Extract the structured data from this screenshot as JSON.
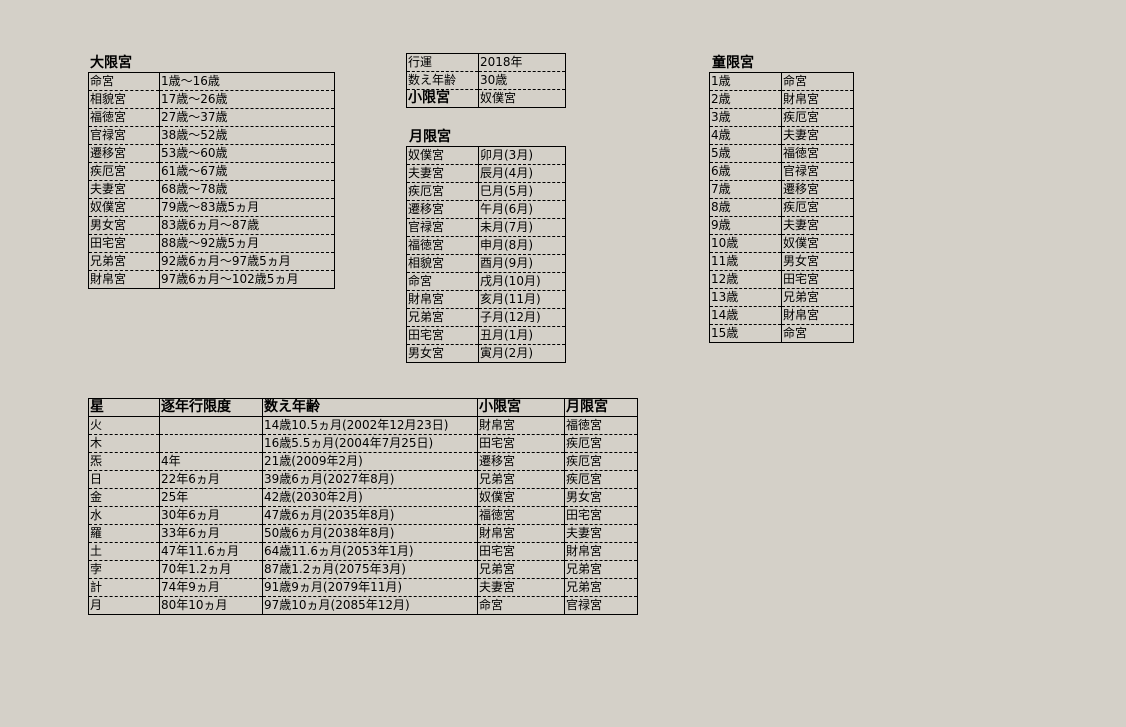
{
  "daigen": {
    "title": "大限宮",
    "rows": [
      [
        "命宮",
        "1歳〜16歳"
      ],
      [
        "相貌宮",
        "17歳〜26歳"
      ],
      [
        "福徳宮",
        "27歳〜37歳"
      ],
      [
        "官禄宮",
        "38歳〜52歳"
      ],
      [
        "遷移宮",
        "53歳〜60歳"
      ],
      [
        "疾厄宮",
        "61歳〜67歳"
      ],
      [
        "夫妻宮",
        "68歳〜78歳"
      ],
      [
        "奴僕宮",
        "79歳〜83歳5ヵ月"
      ],
      [
        "男女宮",
        "83歳6ヵ月〜87歳"
      ],
      [
        "田宅宮",
        "88歳〜92歳5ヵ月"
      ],
      [
        "兄弟宮",
        "92歳6ヵ月〜97歳5ヵ月"
      ],
      [
        "財帛宮",
        "97歳6ヵ月〜102歳5ヵ月"
      ]
    ]
  },
  "gyoun": {
    "rows": [
      [
        "行運",
        "2018年"
      ],
      [
        "数え年齢",
        "30歳"
      ],
      [
        "小限宮",
        "奴僕宮"
      ]
    ]
  },
  "getsugen": {
    "title": "月限宮",
    "rows": [
      [
        "奴僕宮",
        "卯月(3月)"
      ],
      [
        "夫妻宮",
        "辰月(4月)"
      ],
      [
        "疾厄宮",
        "巳月(5月)"
      ],
      [
        "遷移宮",
        "午月(6月)"
      ],
      [
        "官禄宮",
        "未月(7月)"
      ],
      [
        "福徳宮",
        "申月(8月)"
      ],
      [
        "相貌宮",
        "酉月(9月)"
      ],
      [
        "命宮",
        "戌月(10月)"
      ],
      [
        "財帛宮",
        "亥月(11月)"
      ],
      [
        "兄弟宮",
        "子月(12月)"
      ],
      [
        "田宅宮",
        "丑月(1月)"
      ],
      [
        "男女宮",
        "寅月(2月)"
      ]
    ]
  },
  "dougen": {
    "title": "童限宮",
    "rows": [
      [
        "1歳",
        "命宮"
      ],
      [
        "2歳",
        "財帛宮"
      ],
      [
        "3歳",
        "疾厄宮"
      ],
      [
        "4歳",
        "夫妻宮"
      ],
      [
        "5歳",
        "福徳宮"
      ],
      [
        "6歳",
        "官禄宮"
      ],
      [
        "7歳",
        "遷移宮"
      ],
      [
        "8歳",
        "疾厄宮"
      ],
      [
        "9歳",
        "夫妻宮"
      ],
      [
        "10歳",
        "奴僕宮"
      ],
      [
        "11歳",
        "男女宮"
      ],
      [
        "12歳",
        "田宅宮"
      ],
      [
        "13歳",
        "兄弟宮"
      ],
      [
        "14歳",
        "財帛宮"
      ],
      [
        "15歳",
        "命宮"
      ]
    ]
  },
  "stars": {
    "headers": [
      "星",
      "逐年行限度",
      "数え年齢",
      "小限宮",
      "月限宮"
    ],
    "rows": [
      [
        "火",
        "",
        "14歳10.5ヵ月(2002年12月23日)",
        "財帛宮",
        "福徳宮"
      ],
      [
        "木",
        "",
        "16歳5.5ヵ月(2004年7月25日)",
        "田宅宮",
        "疾厄宮"
      ],
      [
        "炁",
        "4年",
        "21歳(2009年2月)",
        "遷移宮",
        "疾厄宮"
      ],
      [
        "日",
        "22年6ヵ月",
        "39歳6ヵ月(2027年8月)",
        "兄弟宮",
        "疾厄宮"
      ],
      [
        "金",
        "25年",
        "42歳(2030年2月)",
        "奴僕宮",
        "男女宮"
      ],
      [
        "水",
        "30年6ヵ月",
        "47歳6ヵ月(2035年8月)",
        "福徳宮",
        "田宅宮"
      ],
      [
        "羅",
        "33年6ヵ月",
        "50歳6ヵ月(2038年8月)",
        "財帛宮",
        "夫妻宮"
      ],
      [
        "土",
        "47年11.6ヵ月",
        "64歳11.6ヵ月(2053年1月)",
        "田宅宮",
        "財帛宮"
      ],
      [
        "孛",
        "70年1.2ヵ月",
        "87歳1.2ヵ月(2075年3月)",
        "兄弟宮",
        "兄弟宮"
      ],
      [
        "計",
        "74年9ヵ月",
        "91歳9ヵ月(2079年11月)",
        "夫妻宮",
        "兄弟宮"
      ],
      [
        "月",
        "80年10ヵ月",
        "97歳10ヵ月(2085年12月)",
        "命宮",
        "官禄宮"
      ]
    ]
  }
}
